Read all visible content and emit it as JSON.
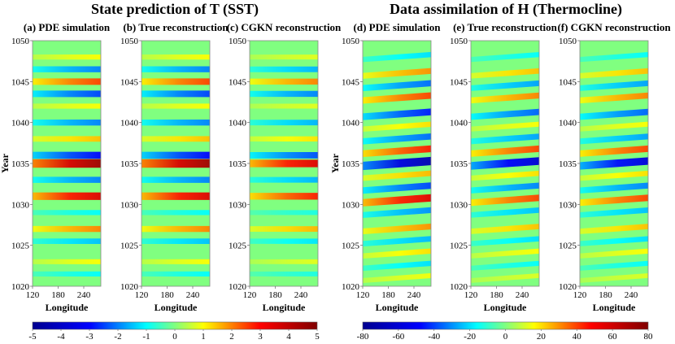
{
  "figure": {
    "left_title": "State prediction of T (SST)",
    "right_title": "Data assimilation of H (Thermocline)"
  },
  "chart_data": [
    {
      "type": "heatmap",
      "title": "(a) PDE simulation",
      "group": "T",
      "xlabel": "Longitude",
      "ylabel": "Year",
      "x_ticks": [
        120,
        180,
        240
      ],
      "xlim": [
        120,
        280
      ],
      "y_ticks": [
        1020,
        1025,
        1030,
        1035,
        1040,
        1045,
        1050
      ],
      "ylim": [
        1020,
        1050
      ],
      "stripe_years": [
        1021.5,
        1023,
        1025.5,
        1027,
        1029,
        1031,
        1033,
        1035,
        1036,
        1038,
        1040,
        1042,
        1043.5,
        1045,
        1046.5,
        1048
      ],
      "stripe_values": [
        -1,
        1,
        -1.5,
        2,
        -1,
        3.5,
        -2,
        4.5,
        -3,
        1.5,
        -2,
        1,
        -2.5,
        2.5,
        -2,
        1
      ],
      "colorscale": [
        "#00008f",
        "#0000ff",
        "#00ffff",
        "#ffff00",
        "#ff0000",
        "#800000"
      ]
    },
    {
      "type": "heatmap",
      "title": "(b) True reconstruction",
      "group": "T",
      "xlabel": "Longitude",
      "x_ticks": [
        120,
        180,
        240
      ],
      "xlim": [
        120,
        280
      ],
      "y_ticks": [
        1020,
        1025,
        1030,
        1035,
        1040,
        1045,
        1050
      ],
      "ylim": [
        1020,
        1050
      ],
      "stripe_years": [
        1021.5,
        1023,
        1025.5,
        1027,
        1029,
        1031,
        1033,
        1035,
        1036,
        1038,
        1040,
        1042,
        1043.5,
        1045,
        1046.5,
        1048
      ],
      "stripe_values": [
        -1,
        1,
        -1.5,
        2,
        -1,
        3.5,
        -2,
        4.5,
        -3,
        1.5,
        -2,
        1,
        -2.5,
        2.5,
        -2,
        1
      ],
      "colorscale": [
        "#00008f",
        "#0000ff",
        "#00ffff",
        "#ffff00",
        "#ff0000",
        "#800000"
      ]
    },
    {
      "type": "heatmap",
      "title": "(c) CGKN reconstruction",
      "group": "T",
      "xlabel": "Longitude",
      "x_ticks": [
        120,
        180,
        240
      ],
      "xlim": [
        120,
        280
      ],
      "y_ticks": [
        1020,
        1025,
        1030,
        1035,
        1040,
        1045,
        1050
      ],
      "ylim": [
        1020,
        1050
      ],
      "stripe_years": [
        1021.5,
        1023,
        1025.5,
        1027,
        1029,
        1031,
        1033,
        1035,
        1036,
        1038,
        1040,
        1042,
        1043.5,
        1045,
        1046.5,
        1048
      ],
      "stripe_values": [
        -0.8,
        0.8,
        -1.2,
        1.6,
        -0.8,
        2.8,
        -1.6,
        3.5,
        -2.4,
        1.2,
        -1.6,
        0.8,
        -2,
        2,
        -1.6,
        0.8
      ],
      "colorscale": [
        "#00008f",
        "#0000ff",
        "#00ffff",
        "#ffff00",
        "#ff0000",
        "#800000"
      ]
    },
    {
      "type": "heatmap",
      "title": "(d) PDE simulation",
      "group": "H",
      "xlabel": "Longitude",
      "ylabel": "Year",
      "x_ticks": [
        120,
        180,
        240
      ],
      "xlim": [
        120,
        280
      ],
      "y_ticks": [
        1020,
        1025,
        1030,
        1035,
        1040,
        1045,
        1050
      ],
      "ylim": [
        1020,
        1050
      ],
      "stripe_years": [
        1021,
        1022.5,
        1024,
        1025.5,
        1027,
        1029,
        1030.5,
        1032,
        1033.5,
        1035,
        1036.5,
        1038,
        1039.5,
        1041,
        1043,
        1044.5,
        1046,
        1048
      ],
      "stripe_values": [
        15,
        -20,
        20,
        -25,
        30,
        -30,
        55,
        -40,
        25,
        -70,
        45,
        -35,
        20,
        -45,
        40,
        -35,
        30,
        -20
      ],
      "colorscale": [
        "#00008f",
        "#0000ff",
        "#00ffff",
        "#ffff00",
        "#ff0000",
        "#800000"
      ]
    },
    {
      "type": "heatmap",
      "title": "(e) True reconstruction",
      "group": "H",
      "xlabel": "Longitude",
      "x_ticks": [
        120,
        180,
        240
      ],
      "xlim": [
        120,
        280
      ],
      "y_ticks": [
        1020,
        1025,
        1030,
        1035,
        1040,
        1045,
        1050
      ],
      "ylim": [
        1020,
        1050
      ],
      "stripe_years": [
        1021,
        1022.5,
        1024,
        1025.5,
        1027,
        1029,
        1030.5,
        1032,
        1033.5,
        1035,
        1036.5,
        1038,
        1039.5,
        1041,
        1043,
        1044.5,
        1046,
        1048
      ],
      "stripe_values": [
        12,
        -16,
        16,
        -20,
        24,
        -24,
        40,
        -32,
        20,
        -60,
        40,
        -28,
        16,
        -36,
        32,
        -28,
        24,
        -16
      ],
      "colorscale": [
        "#00008f",
        "#0000ff",
        "#00ffff",
        "#ffff00",
        "#ff0000",
        "#800000"
      ]
    },
    {
      "type": "heatmap",
      "title": "(f) CGKN reconstruction",
      "group": "H",
      "xlabel": "Longitude",
      "x_ticks": [
        120,
        180,
        240
      ],
      "xlim": [
        120,
        280
      ],
      "y_ticks": [
        1020,
        1025,
        1030,
        1035,
        1040,
        1045,
        1050
      ],
      "ylim": [
        1020,
        1050
      ],
      "stripe_years": [
        1021,
        1022.5,
        1024,
        1025.5,
        1027,
        1029,
        1030.5,
        1032,
        1033.5,
        1035,
        1036.5,
        1038,
        1039.5,
        1041,
        1043,
        1044.5,
        1046,
        1048
      ],
      "stripe_values": [
        12,
        -16,
        16,
        -20,
        24,
        -24,
        40,
        -32,
        20,
        -58,
        40,
        -28,
        16,
        -36,
        32,
        -28,
        24,
        -16
      ],
      "colorscale": [
        "#00008f",
        "#0000ff",
        "#00ffff",
        "#ffff00",
        "#ff0000",
        "#800000"
      ]
    }
  ],
  "colorbars": [
    {
      "group": "T",
      "range": [
        -5,
        5
      ],
      "ticks": [
        -5,
        -4,
        -3,
        -2,
        -1,
        0,
        1,
        2,
        3,
        4,
        5
      ]
    },
    {
      "group": "H",
      "range": [
        -80,
        80
      ],
      "ticks": [
        -80,
        -60,
        -40,
        -20,
        0,
        20,
        40,
        60,
        80
      ]
    }
  ]
}
